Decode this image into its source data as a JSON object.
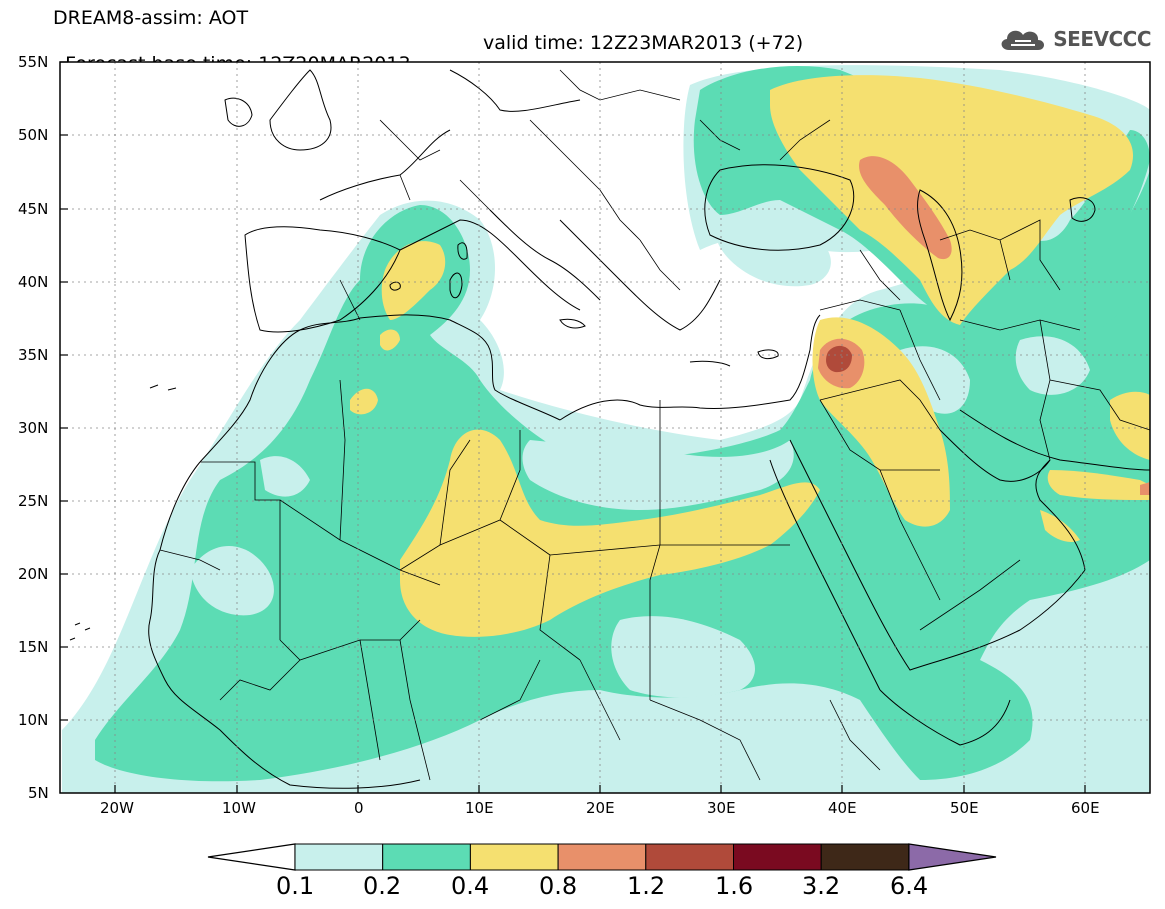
{
  "header": {
    "title": "DREAM8-assim: AOT",
    "base_time": "Forecast base time: 12Z20MAR2013",
    "valid_time": "valid time: 12Z23MAR2013 (+72)",
    "logo_text": "SEEVCCC"
  },
  "axes": {
    "x_ticks": [
      "20W",
      "10W",
      "0",
      "10E",
      "20E",
      "30E",
      "40E",
      "50E",
      "60E"
    ],
    "y_ticks": [
      "55N",
      "50N",
      "45N",
      "40N",
      "35N",
      "30N",
      "25N",
      "20N",
      "15N",
      "10N",
      "5N"
    ],
    "lon_range": [
      -25,
      65
    ],
    "lat_range": [
      5,
      55
    ]
  },
  "colorbar": {
    "labels": [
      "0.1",
      "0.2",
      "0.4",
      "0.8",
      "1.2",
      "1.6",
      "3.2",
      "6.4"
    ],
    "colors": [
      "#c8f0ec",
      "#5cdcb4",
      "#f5e070",
      "#e8906a",
      "#b04a3a",
      "#7a0a20",
      "#3e2818",
      "#8c6aa8"
    ],
    "under_color": "#ffffff"
  },
  "colors": {
    "coast": "#000000",
    "grid": "#888888"
  }
}
